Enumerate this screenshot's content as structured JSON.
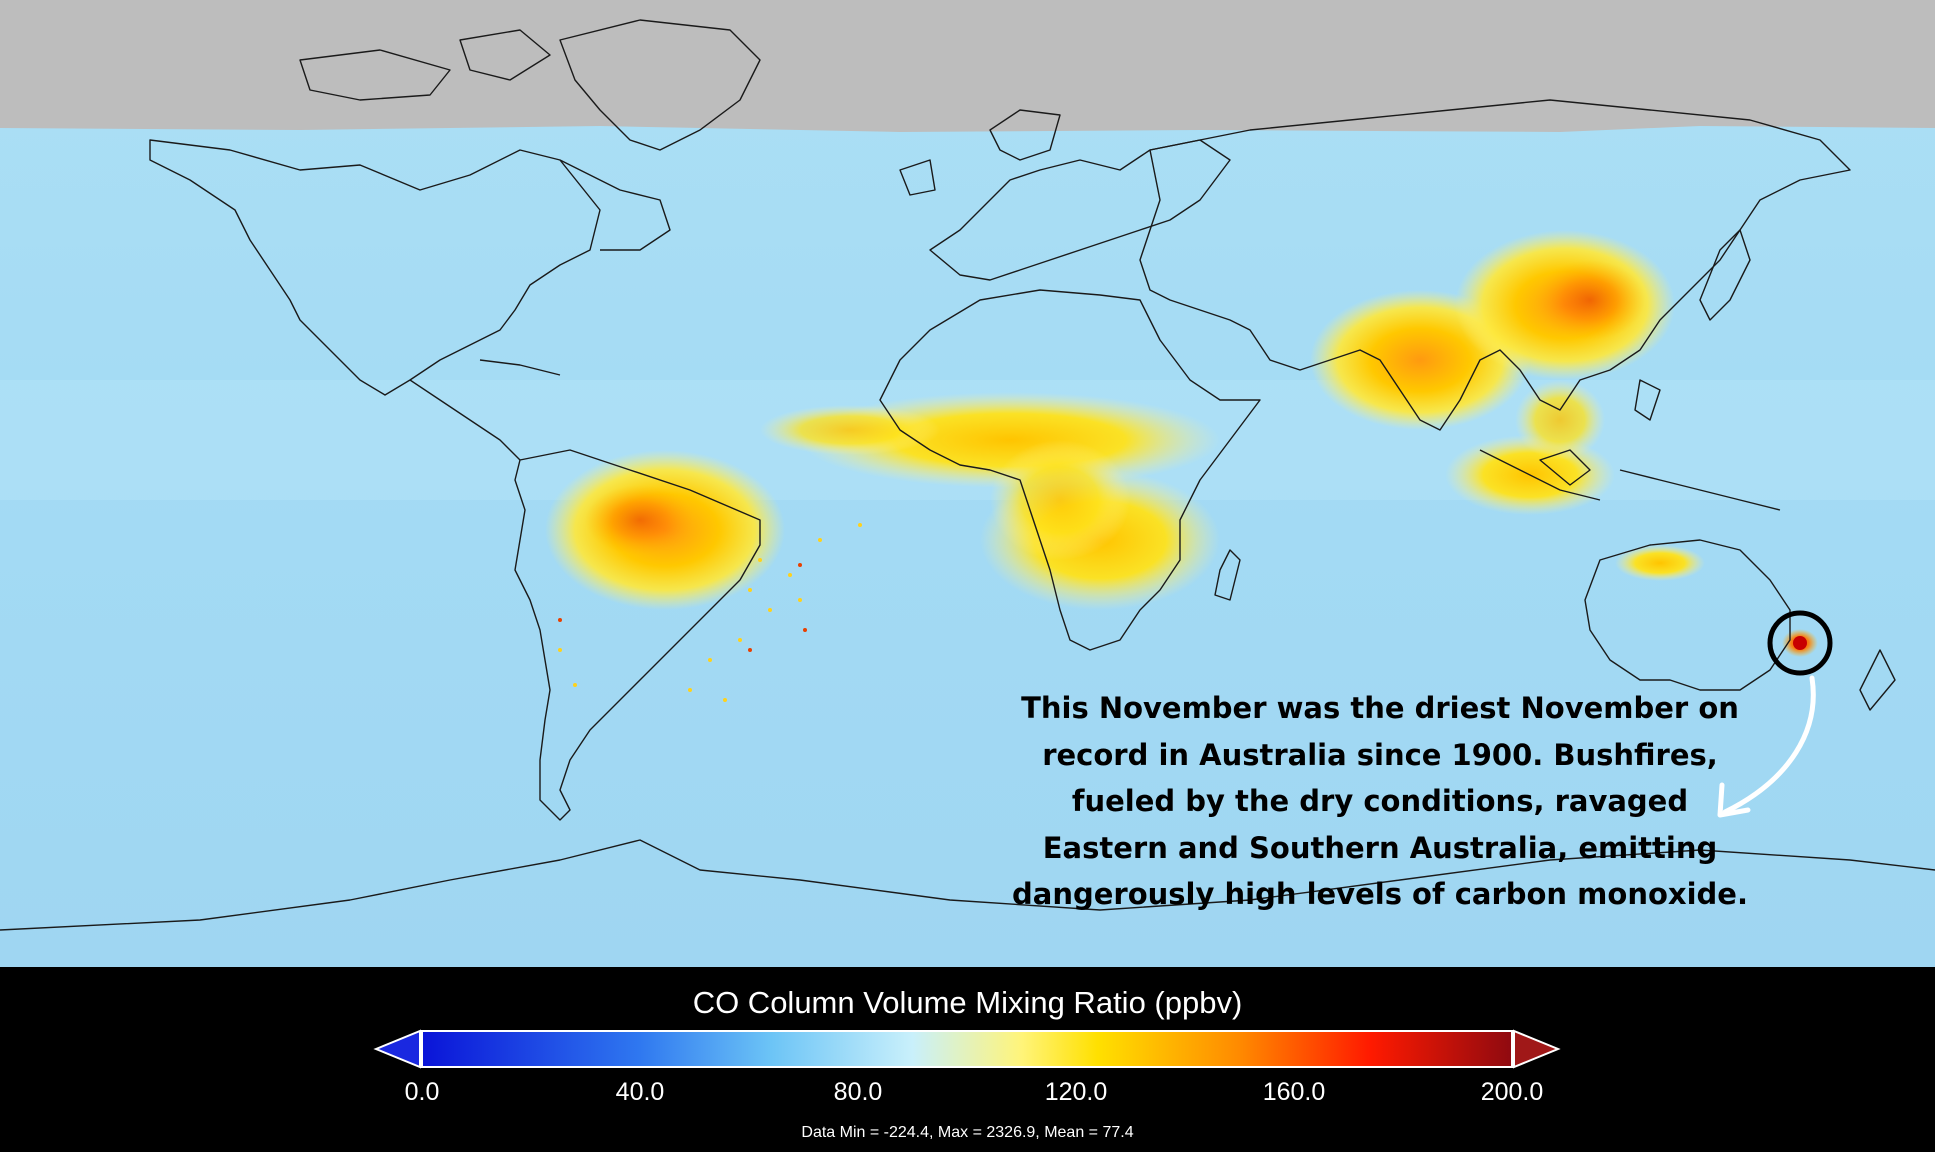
{
  "annotation": {
    "lines": [
      "This November was the driest November on",
      "record in Australia since 1900. Bushfires,",
      "fueled by the dry conditions, ravaged",
      "Eastern and Southern Australia, emitting",
      "dangerously high levels of carbon monoxide."
    ]
  },
  "colorbar": {
    "title": "CO Column Volume Mixing Ratio (ppbv)",
    "ticks": [
      "0.0",
      "40.0",
      "80.0",
      "120.0",
      "160.0",
      "200.0"
    ],
    "tick_values": [
      0,
      40,
      80,
      120,
      160,
      200
    ],
    "range": [
      0,
      200
    ],
    "colors": {
      "low": "#0a14d8",
      "mid_low": "#3f9cf2",
      "mid": "#b8ecf8",
      "mid_high": "#ffe400",
      "high": "#ff6a00",
      "top": "#e00000",
      "max": "#8f0a10"
    },
    "stats": "Data Min = -224.4, Max = 2326.9, Mean = 77.4"
  },
  "map": {
    "background_color": "#a4dcf4",
    "no_data_color": "#bdbdbd",
    "highlight_region": "Australia",
    "icons": [
      "highlight-circle-icon",
      "curved-arrow-icon"
    ]
  }
}
